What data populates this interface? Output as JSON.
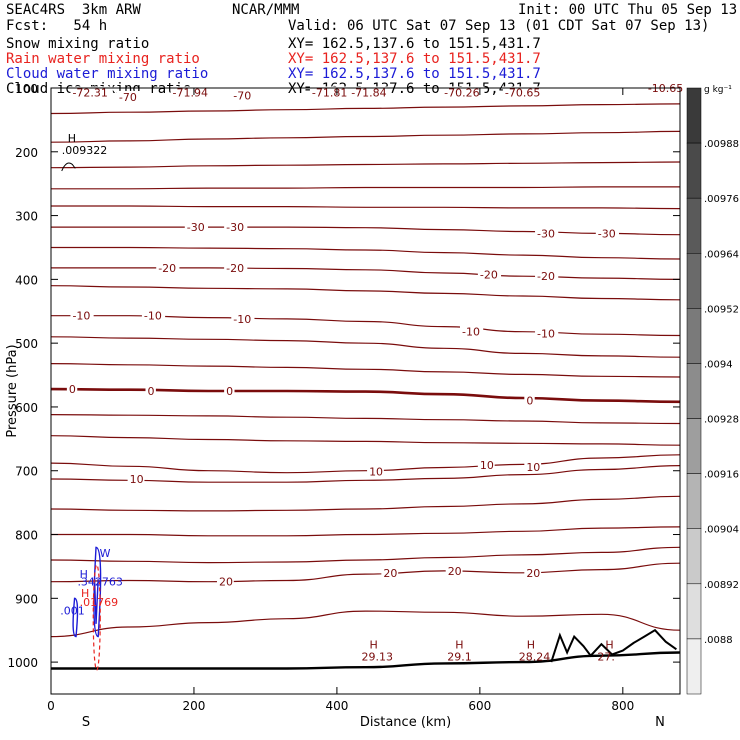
{
  "header": {
    "model": "SEAC4RS  3km ARW",
    "org": "NCAR/MMM",
    "init": "Init: 00 UTC Thu 05 Sep 13",
    "fcst": "Fcst:   54 h",
    "valid": "Valid: 06 UTC Sat 07 Sep 13 (01 CDT Sat 07 Sep 13)",
    "fields": [
      {
        "label": "Snow mixing ratio",
        "xy": "XY= 162.5,137.6 to 151.5,431.7",
        "color": "#000000"
      },
      {
        "label": "Rain water mixing ratio",
        "xy": "XY= 162.5,137.6 to 151.5,431.7",
        "color": "#e8231f"
      },
      {
        "label": "Cloud water mixing ratio",
        "xy": "XY= 162.5,137.6 to 151.5,431.7",
        "color": "#1b1bd6"
      },
      {
        "label": "Cloud ice mixing ratio",
        "xy": "XY= 162.5,137.6 to 151.5,431.7",
        "color": "#000000"
      }
    ]
  },
  "chart_data": {
    "type": "contour-cross-section",
    "xlabel": "Distance (km)",
    "ylabel": "Pressure (hPa)",
    "xlim": [
      0,
      880
    ],
    "ylim": [
      1050,
      100
    ],
    "xticks": [
      "0",
      "200",
      "400",
      "600",
      "800"
    ],
    "yticks": [
      "200",
      "300",
      "400",
      "500",
      "600",
      "700",
      "800",
      "900",
      "1000"
    ],
    "ytick_values": [
      200,
      300,
      400,
      500,
      600,
      700,
      800,
      900,
      1000
    ],
    "top_label": "100",
    "endpoint_left": "S",
    "endpoint_right": "N",
    "colorbar": {
      "unit": "g kg⁻¹",
      "labels": [
        ".00988",
        ".00976",
        ".00964",
        ".00952",
        ".0094",
        ".00928",
        ".00916",
        ".00904",
        ".00892",
        ".0088"
      ],
      "colors": [
        "#3a3a3a",
        "#4a4a4a",
        "#5a5a5a",
        "#6a6a6a",
        "#7a7a7a",
        "#8c8c8c",
        "#9e9e9e",
        "#b4b4b4",
        "#cacaca",
        "#dedede",
        "#efefef"
      ]
    },
    "isotherm_color": "#7a0c0c",
    "temperature_labels": [
      {
        "text": "-72.31",
        "x": 30,
        "p": 107
      },
      {
        "text": "-70",
        "x": 95,
        "p": 114
      },
      {
        "text": "-71.94",
        "x": 170,
        "p": 107
      },
      {
        "text": "-70",
        "x": 255,
        "p": 112
      },
      {
        "text": "-71.81",
        "x": 365,
        "p": 107
      },
      {
        "text": "-71.84",
        "x": 420,
        "p": 107
      },
      {
        "text": "-70.26",
        "x": 550,
        "p": 107
      },
      {
        "text": "-70.65",
        "x": 635,
        "p": 107
      },
      {
        "text": "-10.65",
        "x": 835,
        "p": 100
      },
      {
        "text": "-30",
        "x": 190,
        "p": 318
      },
      {
        "text": "-30",
        "x": 245,
        "p": 318
      },
      {
        "text": "-30",
        "x": 680,
        "p": 328
      },
      {
        "text": "-30",
        "x": 765,
        "p": 328
      },
      {
        "text": "-20",
        "x": 150,
        "p": 382
      },
      {
        "text": "-20",
        "x": 245,
        "p": 382
      },
      {
        "text": "-20",
        "x": 600,
        "p": 392
      },
      {
        "text": "-20",
        "x": 680,
        "p": 395
      },
      {
        "text": "-10",
        "x": 30,
        "p": 457
      },
      {
        "text": "-10",
        "x": 130,
        "p": 457
      },
      {
        "text": "-10",
        "x": 255,
        "p": 462
      },
      {
        "text": "-10",
        "x": 575,
        "p": 482
      },
      {
        "text": "-10",
        "x": 680,
        "p": 485
      },
      {
        "text": "0",
        "x": 25,
        "p": 572
      },
      {
        "text": "0",
        "x": 135,
        "p": 575
      },
      {
        "text": "0",
        "x": 245,
        "p": 575
      },
      {
        "text": "0",
        "x": 665,
        "p": 590
      },
      {
        "text": "10",
        "x": 110,
        "p": 713
      },
      {
        "text": "10",
        "x": 445,
        "p": 701
      },
      {
        "text": "10",
        "x": 600,
        "p": 691
      },
      {
        "text": "10",
        "x": 665,
        "p": 694
      },
      {
        "text": "20",
        "x": 235,
        "p": 874
      },
      {
        "text": "20",
        "x": 465,
        "p": 860
      },
      {
        "text": "20",
        "x": 555,
        "p": 857
      },
      {
        "text": "20",
        "x": 665,
        "p": 860
      }
    ],
    "isotherms": [
      {
        "p": [
          140,
          138,
          136,
          134,
          132,
          130,
          128,
          126,
          125
        ],
        "bold": false
      },
      {
        "p": [
          185,
          183,
          180,
          178,
          176,
          174,
          172,
          170,
          168
        ],
        "bold": false
      },
      {
        "p": [
          225,
          224,
          222,
          221,
          220,
          219,
          218,
          217,
          216
        ],
        "bold": false
      },
      {
        "p": [
          258,
          258,
          257,
          257,
          256,
          256,
          256,
          255,
          255
        ],
        "bold": false
      },
      {
        "p": [
          285,
          285,
          286,
          286,
          287,
          287,
          288,
          288,
          289
        ],
        "bold": false
      },
      {
        "p": [
          318,
          318,
          318,
          318,
          319,
          322,
          325,
          328,
          330
        ],
        "bold": false
      },
      {
        "p": [
          350,
          350,
          351,
          352,
          354,
          358,
          362,
          366,
          368
        ],
        "bold": false
      },
      {
        "p": [
          382,
          382,
          382,
          383,
          385,
          390,
          395,
          398,
          400
        ],
        "bold": false
      },
      {
        "p": [
          410,
          412,
          414,
          415,
          418,
          422,
          426,
          430,
          432
        ],
        "bold": false
      },
      {
        "p": [
          457,
          457,
          460,
          462,
          466,
          474,
          482,
          486,
          488
        ],
        "bold": false
      },
      {
        "p": [
          490,
          492,
          494,
          496,
          500,
          508,
          516,
          520,
          522
        ],
        "bold": false
      },
      {
        "p": [
          532,
          534,
          536,
          538,
          541,
          545,
          549,
          552,
          553
        ],
        "bold": false
      },
      {
        "p": [
          572,
          573,
          575,
          575,
          576,
          580,
          586,
          590,
          592
        ],
        "bold": true
      },
      {
        "p": [
          612,
          613,
          614,
          616,
          618,
          620,
          622,
          625,
          626
        ],
        "bold": false
      },
      {
        "p": [
          645,
          648,
          651,
          653,
          654,
          656,
          657,
          658,
          660
        ],
        "bold": false
      },
      {
        "p": [
          688,
          693,
          700,
          703,
          700,
          695,
          690,
          680,
          675
        ],
        "bold": false
      },
      {
        "p": [
          713,
          715,
          718,
          718,
          715,
          712,
          706,
          698,
          692
        ],
        "bold": false
      },
      {
        "p": [
          760,
          762,
          763,
          762,
          760,
          756,
          752,
          745,
          740
        ],
        "bold": false
      },
      {
        "p": [
          800,
          800,
          802,
          802,
          800,
          798,
          795,
          790,
          788
        ],
        "bold": false
      },
      {
        "p": [
          840,
          842,
          844,
          843,
          840,
          836,
          832,
          828,
          820
        ],
        "bold": false
      },
      {
        "p": [
          874,
          872,
          874,
          872,
          862,
          857,
          860,
          855,
          845
        ],
        "bold": false
      },
      {
        "p": [
          960,
          945,
          938,
          932,
          920,
          922,
          928,
          925,
          950
        ],
        "bold": false
      }
    ],
    "surface_p": [
      1010,
      1010,
      1010,
      1010,
      1008,
      1002,
      1000,
      990,
      985
    ],
    "pressure_highs": [
      {
        "text": "29.13",
        "x": 440,
        "p": 988
      },
      {
        "text": "29.1",
        "x": 560,
        "p": 988
      },
      {
        "text": "28.24",
        "x": 660,
        "p": 988
      },
      {
        "text": "27.",
        "x": 770,
        "p": 988
      }
    ],
    "snow_max": {
      "text": ".009322",
      "x": 15,
      "p": 200
    },
    "cloud_water": {
      "max": ".342763",
      "min": ".001",
      "color": "#1b1bd6"
    },
    "rain_water": {
      "max": ".01769",
      "color": "#e8231f"
    }
  }
}
